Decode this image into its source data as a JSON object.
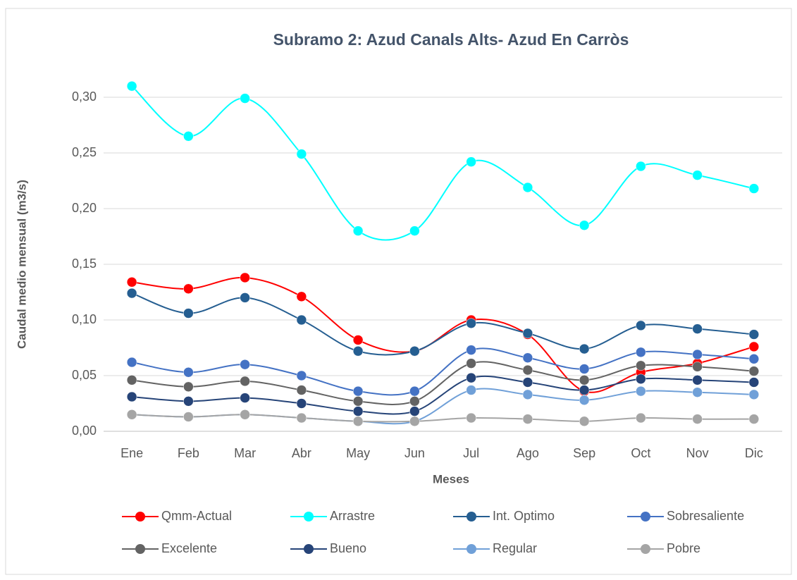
{
  "chart_data": {
    "type": "line",
    "title": "Subramo 2: Azud Canals Alts- Azud En Carròs",
    "x_label": "Meses",
    "y_label": "Caudal medio mensual (m3/s)",
    "categories": [
      "Ene",
      "Feb",
      "Mar",
      "Abr",
      "May",
      "Jun",
      "Jul",
      "Ago",
      "Sep",
      "Oct",
      "Nov",
      "Dic"
    ],
    "ylim": [
      0,
      0.3
    ],
    "yticks": [
      {
        "value": 0,
        "label": "0,00"
      },
      {
        "value": 0.05,
        "label": "0,05"
      },
      {
        "value": 0.1,
        "label": "0,10"
      },
      {
        "value": 0.15,
        "label": "0,15"
      },
      {
        "value": 0.2,
        "label": "0,20"
      },
      {
        "value": 0.25,
        "label": "0,25"
      },
      {
        "value": 0.3,
        "label": "0,30"
      }
    ],
    "grid": true,
    "smooth": true,
    "legend": "bottom",
    "series": [
      {
        "name": "Qmm-Actual",
        "color": "#ff0000",
        "values": [
          0.134,
          0.128,
          0.138,
          0.121,
          0.082,
          0.072,
          0.1,
          0.087,
          0.036,
          0.053,
          0.061,
          0.076
        ]
      },
      {
        "name": "Arrastre",
        "color": "#00ffff",
        "values": [
          0.31,
          0.265,
          0.299,
          0.249,
          0.18,
          0.18,
          0.242,
          0.219,
          0.185,
          0.238,
          0.23,
          0.218
        ]
      },
      {
        "name": "Int. Optimo",
        "color": "#255e91",
        "values": [
          0.124,
          0.106,
          0.12,
          0.1,
          0.072,
          0.072,
          0.097,
          0.088,
          0.074,
          0.095,
          0.092,
          0.087
        ]
      },
      {
        "name": "Sobresaliente",
        "color": "#4472c4",
        "values": [
          0.062,
          0.053,
          0.06,
          0.05,
          0.036,
          0.036,
          0.073,
          0.066,
          0.056,
          0.071,
          0.069,
          0.065
        ]
      },
      {
        "name": "Excelente",
        "color": "#636363",
        "values": [
          0.046,
          0.04,
          0.045,
          0.037,
          0.027,
          0.027,
          0.061,
          0.055,
          0.046,
          0.059,
          0.058,
          0.054
        ]
      },
      {
        "name": "Bueno",
        "color": "#264478",
        "values": [
          0.031,
          0.027,
          0.03,
          0.025,
          0.018,
          0.018,
          0.048,
          0.044,
          0.037,
          0.047,
          0.046,
          0.044
        ]
      },
      {
        "name": "Regular",
        "color": "#70a0d8",
        "values": [
          0.015,
          0.013,
          0.015,
          0.012,
          0.009,
          0.009,
          0.037,
          0.033,
          0.028,
          0.036,
          0.035,
          0.033
        ]
      },
      {
        "name": "Pobre",
        "color": "#a5a5a5",
        "values": [
          0.015,
          0.013,
          0.015,
          0.012,
          0.009,
          0.009,
          0.012,
          0.011,
          0.009,
          0.012,
          0.011,
          0.011
        ]
      }
    ]
  }
}
